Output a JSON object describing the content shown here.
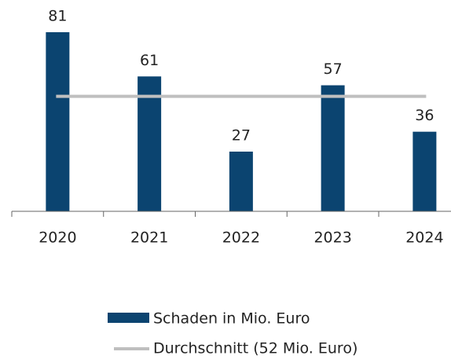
{
  "chart_data": {
    "type": "bar",
    "categories": [
      "2020",
      "2021",
      "2022",
      "2023",
      "2024"
    ],
    "series": [
      {
        "name": "Schaden in Mio. Euro",
        "color": "#0b4470",
        "values": [
          81,
          61,
          27,
          57,
          36
        ]
      }
    ],
    "average_line": {
      "name": "Durchschnitt (52 Mio. Euro)",
      "value": 52,
      "color": "#bfbfbf"
    },
    "ylim": [
      0,
      81
    ]
  }
}
